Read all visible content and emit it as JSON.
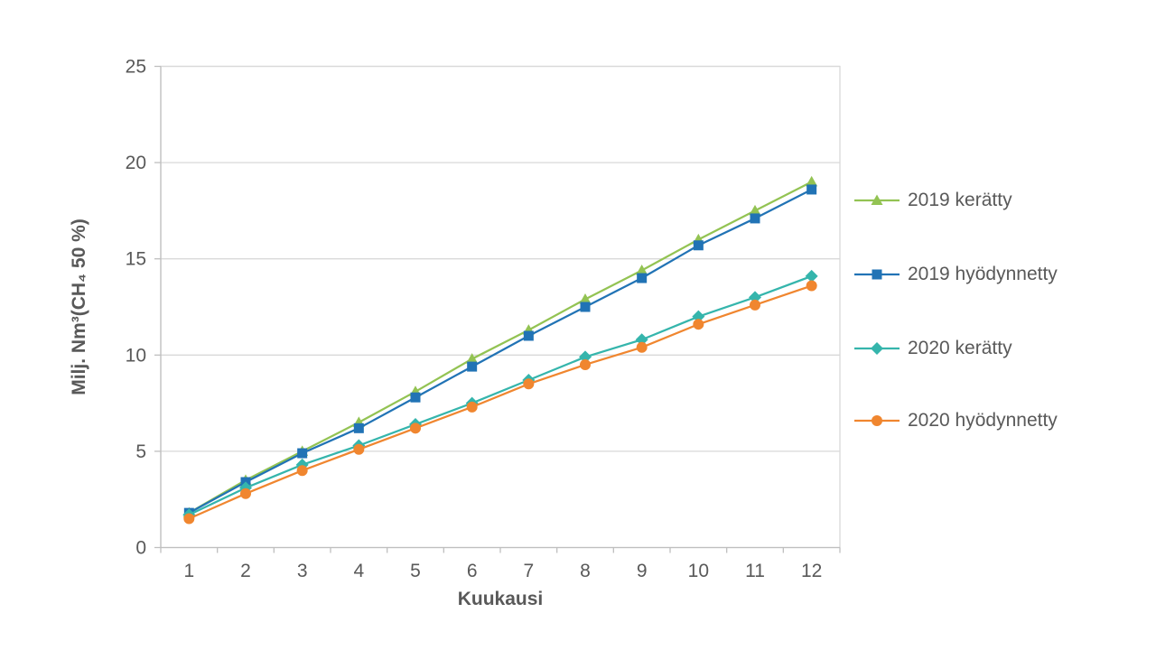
{
  "chart_data": {
    "type": "line",
    "title": "",
    "xlabel": "Kuukausi",
    "ylabel": "Milj. Nm³(CH₄ 50 %)",
    "x": [
      1,
      2,
      3,
      4,
      5,
      6,
      7,
      8,
      9,
      10,
      11,
      12
    ],
    "ylim": [
      0,
      25
    ],
    "yticks": [
      0,
      5,
      10,
      15,
      20,
      25
    ],
    "grid": true,
    "legend_position": "right",
    "series": [
      {
        "name": "2019 kerätty",
        "marker": "triangle",
        "color": "#93C353",
        "values": [
          1.8,
          3.5,
          5.0,
          6.5,
          8.1,
          9.8,
          11.3,
          12.9,
          14.4,
          16.0,
          17.5,
          19.0
        ]
      },
      {
        "name": "2019 hyödynnetty",
        "marker": "square",
        "color": "#2173B5",
        "values": [
          1.8,
          3.4,
          4.9,
          6.2,
          7.8,
          9.4,
          11.0,
          12.5,
          14.0,
          15.7,
          17.1,
          18.6
        ]
      },
      {
        "name": "2020 kerätty",
        "marker": "diamond",
        "color": "#35B5AC",
        "values": [
          1.7,
          3.1,
          4.3,
          5.3,
          6.4,
          7.5,
          8.7,
          9.9,
          10.8,
          12.0,
          13.0,
          14.1
        ]
      },
      {
        "name": "2020 hyödynnetty",
        "marker": "circle",
        "color": "#F0862F",
        "values": [
          1.5,
          2.8,
          4.0,
          5.1,
          6.2,
          7.3,
          8.5,
          9.5,
          10.4,
          11.6,
          12.6,
          13.6
        ]
      }
    ],
    "colors": {
      "gridline": "#D9D9D9",
      "axis": "#BFBFBF",
      "text": "#595959",
      "background": "#FFFFFF"
    }
  }
}
